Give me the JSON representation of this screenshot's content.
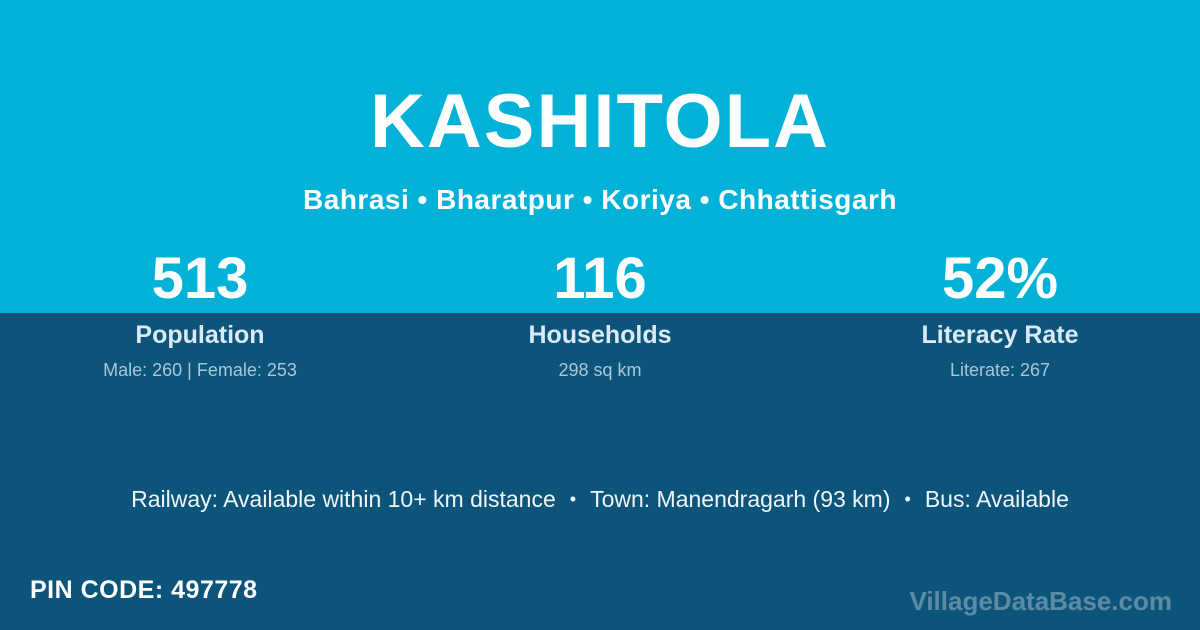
{
  "colors": {
    "top_band": "#00b1d8",
    "bottom_band": "#0d547a",
    "text_primary": "#ffffff",
    "text_label": "#d9eaf4",
    "text_detail": "#a7c8da"
  },
  "header": {
    "title": "KASHITOLA",
    "subtitle": "Bahrasi • Bharatpur • Koriya • Chhattisgarh"
  },
  "stats": [
    {
      "value": "513",
      "label": "Population",
      "detail": "Male: 260 | Female: 253"
    },
    {
      "value": "116",
      "label": "Households",
      "detail": "298 sq km"
    },
    {
      "value": "52%",
      "label": "Literacy Rate",
      "detail": "Literate: 267"
    }
  ],
  "transport": {
    "railway": "Railway: Available within 10+ km distance",
    "separator": "•",
    "town": "Town: Manendragarh (93 km)",
    "bus": "Bus: Available"
  },
  "footer": {
    "pin_label": "PIN CODE:",
    "pin_value": "497778",
    "watermark": "VillageDataBase.com"
  }
}
